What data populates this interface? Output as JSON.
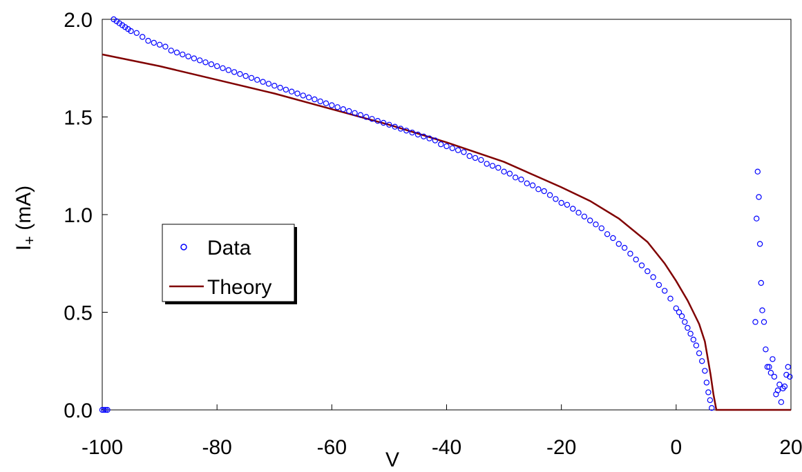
{
  "chart_data": {
    "type": "scatter",
    "title": "",
    "xlabel": "V",
    "ylabel_main": "I",
    "ylabel_sub": "+",
    "ylabel_unit": " (mA)",
    "xlim": [
      -100,
      20
    ],
    "ylim": [
      0,
      2.0
    ],
    "xticks": [
      -100,
      -80,
      -60,
      -40,
      -20,
      0,
      20
    ],
    "xtick_labels": [
      "-100",
      "-80",
      "-60",
      "-40",
      "-20",
      "0",
      "20"
    ],
    "yticks": [
      0,
      0.5,
      1.0,
      1.5,
      2.0
    ],
    "ytick_labels": [
      "0.0",
      "0.5",
      "1.0",
      "1.5",
      "2.0"
    ],
    "grid": false,
    "legend_position": "left-middle",
    "series": [
      {
        "name": "Data",
        "kind": "scatter",
        "color": "#0000FF",
        "marker": "open-circle",
        "x": [
          -100,
          -99.7,
          -99.4,
          -99.1,
          -98,
          -97.5,
          -97,
          -96.5,
          -96,
          -95.5,
          -95,
          -94,
          -93,
          -92,
          -91,
          -90,
          -89,
          -88,
          -87,
          -86,
          -85,
          -84,
          -83,
          -82,
          -81,
          -80,
          -79,
          -78,
          -77,
          -76,
          -75,
          -74,
          -73,
          -72,
          -71,
          -70,
          -69,
          -68,
          -67,
          -66,
          -65,
          -64,
          -63,
          -62,
          -61,
          -60,
          -59,
          -58,
          -57,
          -56,
          -55,
          -54,
          -53,
          -52,
          -51,
          -50,
          -49,
          -48,
          -47,
          -46,
          -45,
          -44,
          -43,
          -42,
          -41,
          -40,
          -39,
          -38,
          -37,
          -36,
          -35,
          -34,
          -33,
          -32,
          -31,
          -30,
          -29,
          -28,
          -27,
          -26,
          -25,
          -24,
          -23,
          -22,
          -21,
          -20,
          -19,
          -18,
          -17,
          -16,
          -15,
          -14,
          -13,
          -12,
          -11,
          -10,
          -9,
          -8,
          -7,
          -6,
          -5,
          -4,
          -3,
          -2,
          -1,
          0,
          0.5,
          1,
          1.5,
          2,
          2.5,
          3,
          3.5,
          4,
          4.5,
          5,
          5.3,
          5.6,
          5.9,
          6.2,
          13.8,
          14.0,
          14.2,
          14.4,
          14.6,
          14.8,
          15.0,
          15.3,
          15.6,
          15.9,
          16.2,
          16.5,
          16.8,
          17.1,
          17.4,
          17.7,
          18.0,
          18.3,
          18.6,
          18.9,
          19.2,
          19.5,
          19.8
        ],
        "y": [
          0,
          0,
          0,
          0,
          2.0,
          1.99,
          1.98,
          1.97,
          1.96,
          1.95,
          1.94,
          1.93,
          1.91,
          1.89,
          1.88,
          1.87,
          1.86,
          1.84,
          1.83,
          1.82,
          1.81,
          1.8,
          1.79,
          1.78,
          1.77,
          1.76,
          1.75,
          1.74,
          1.73,
          1.72,
          1.71,
          1.7,
          1.69,
          1.68,
          1.67,
          1.66,
          1.65,
          1.64,
          1.63,
          1.62,
          1.61,
          1.6,
          1.59,
          1.58,
          1.57,
          1.56,
          1.55,
          1.54,
          1.53,
          1.52,
          1.51,
          1.5,
          1.49,
          1.48,
          1.47,
          1.46,
          1.45,
          1.44,
          1.43,
          1.42,
          1.41,
          1.4,
          1.39,
          1.38,
          1.36,
          1.35,
          1.34,
          1.33,
          1.32,
          1.3,
          1.29,
          1.28,
          1.26,
          1.25,
          1.24,
          1.22,
          1.21,
          1.19,
          1.18,
          1.16,
          1.15,
          1.13,
          1.12,
          1.1,
          1.08,
          1.06,
          1.05,
          1.03,
          1.01,
          0.99,
          0.97,
          0.95,
          0.93,
          0.9,
          0.88,
          0.85,
          0.83,
          0.8,
          0.77,
          0.74,
          0.71,
          0.68,
          0.64,
          0.61,
          0.57,
          0.52,
          0.5,
          0.48,
          0.45,
          0.42,
          0.39,
          0.36,
          0.33,
          0.29,
          0.25,
          0.2,
          0.14,
          0.09,
          0.05,
          0.01,
          0.45,
          0.98,
          1.22,
          1.09,
          0.85,
          0.65,
          0.51,
          0.45,
          0.31,
          0.22,
          0.22,
          0.19,
          0.26,
          0.17,
          0.08,
          0.1,
          0.13,
          0.04,
          0.11,
          0.12,
          0.18,
          0.22,
          0.17
        ]
      },
      {
        "name": "Theory",
        "kind": "line",
        "color": "#800000",
        "x": [
          -100,
          -90,
          -80,
          -70,
          -60,
          -50,
          -40,
          -30,
          -20,
          -15,
          -10,
          -5,
          -2,
          0,
          1,
          2,
          3,
          4,
          5,
          6,
          6.5,
          7,
          8,
          10,
          15,
          20
        ],
        "y": [
          1.82,
          1.76,
          1.69,
          1.62,
          1.54,
          1.46,
          1.37,
          1.27,
          1.14,
          1.07,
          0.98,
          0.86,
          0.75,
          0.66,
          0.61,
          0.56,
          0.5,
          0.44,
          0.35,
          0.18,
          0.08,
          0,
          0,
          0,
          0,
          0
        ]
      }
    ]
  }
}
